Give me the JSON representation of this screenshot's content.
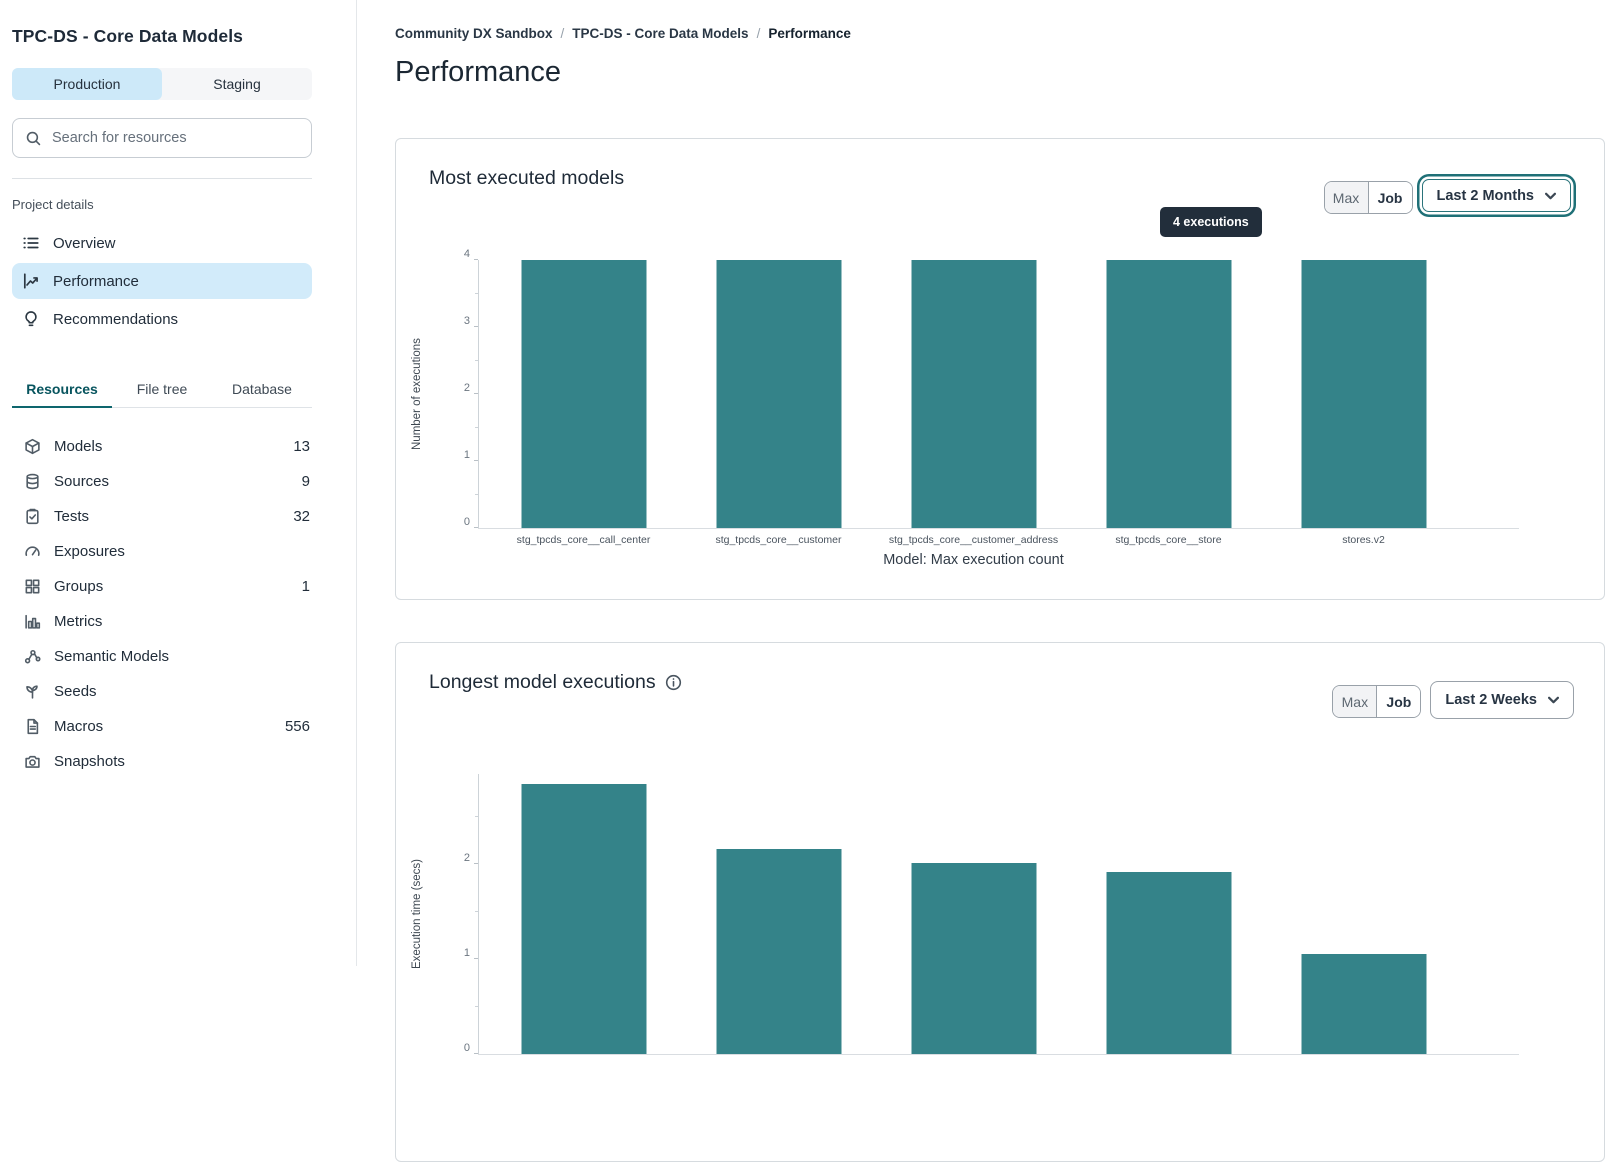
{
  "sidebar": {
    "project_title": "TPC-DS - Core Data Models",
    "environment_tabs": [
      {
        "label": "Production",
        "active": true
      },
      {
        "label": "Staging",
        "active": false
      }
    ],
    "search": {
      "placeholder": "Search for resources"
    },
    "section_label": "Project details",
    "nav": [
      {
        "label": "Overview",
        "icon": "list-icon",
        "active": false
      },
      {
        "label": "Performance",
        "icon": "chart-line-icon",
        "active": true
      },
      {
        "label": "Recommendations",
        "icon": "lightbulb-icon",
        "active": false
      }
    ],
    "resource_tabs": [
      {
        "label": "Resources",
        "active": true
      },
      {
        "label": "File tree",
        "active": false
      },
      {
        "label": "Database",
        "active": false
      }
    ],
    "resources": [
      {
        "label": "Models",
        "count": "13",
        "icon": "cube-icon"
      },
      {
        "label": "Sources",
        "count": "9",
        "icon": "database-icon"
      },
      {
        "label": "Tests",
        "count": "32",
        "icon": "clipboard-check-icon"
      },
      {
        "label": "Exposures",
        "count": "",
        "icon": "gauge-icon"
      },
      {
        "label": "Groups",
        "count": "1",
        "icon": "grid-icon"
      },
      {
        "label": "Metrics",
        "count": "",
        "icon": "bar-chart-icon"
      },
      {
        "label": "Semantic Models",
        "count": "",
        "icon": "nodes-icon"
      },
      {
        "label": "Seeds",
        "count": "",
        "icon": "sprout-icon"
      },
      {
        "label": "Macros",
        "count": "556",
        "icon": "file-icon"
      },
      {
        "label": "Snapshots",
        "count": "",
        "icon": "camera-icon"
      }
    ]
  },
  "header": {
    "breadcrumb": [
      {
        "label": "Community DX Sandbox"
      },
      {
        "label": "TPC-DS - Core Data Models"
      },
      {
        "label": "Performance",
        "current": true
      }
    ],
    "page_title": "Performance"
  },
  "cards": [
    {
      "title": "Most executed models",
      "controls": {
        "max_label": "Max",
        "job_label": "Job",
        "range_label": "Last 2 Months"
      }
    },
    {
      "title": "Longest model executions",
      "has_info_icon": true,
      "controls": {
        "max_label": "Max",
        "job_label": "Job",
        "range_label": "Last 2 Weeks"
      }
    }
  ],
  "chart_data": [
    {
      "type": "bar",
      "title": "Most executed models",
      "categories": [
        "stg_tpcds_core__call_center",
        "stg_tpcds_core__customer",
        "stg_tpcds_core__customer_address",
        "stg_tpcds_core__store",
        "stores.v2"
      ],
      "values": [
        4,
        4,
        4,
        4,
        4
      ],
      "xlabel": "Model: Max execution count",
      "ylabel": "Number of executions",
      "ylim": [
        0,
        4
      ],
      "yticks": [
        0,
        1,
        2,
        3,
        4
      ],
      "grid": false,
      "legend": false,
      "bar_color": "#348389",
      "tooltip": {
        "text": "4 executions",
        "target_category": "stg_tpcds_core__store"
      }
    },
    {
      "type": "bar",
      "title": "Longest model executions",
      "values": [
        2.84,
        2.16,
        2.01,
        1.92,
        1.05
      ],
      "ylabel": "Execution time (secs)",
      "ylim": [
        0,
        2.95
      ],
      "yticks": [
        0,
        1,
        2
      ],
      "grid": false,
      "legend": false,
      "bar_color": "#348389",
      "note_visible_portion": "chart is cut off at the bottom edge of the viewport"
    }
  ],
  "colors": {
    "accent_teal": "#0e666d",
    "bar_color": "#348389",
    "active_item_bg": "#d2ebfa",
    "env_active_bg": "#cde9f9",
    "tooltip_bg": "#222e3b",
    "card_border": "#d6dbdf"
  }
}
